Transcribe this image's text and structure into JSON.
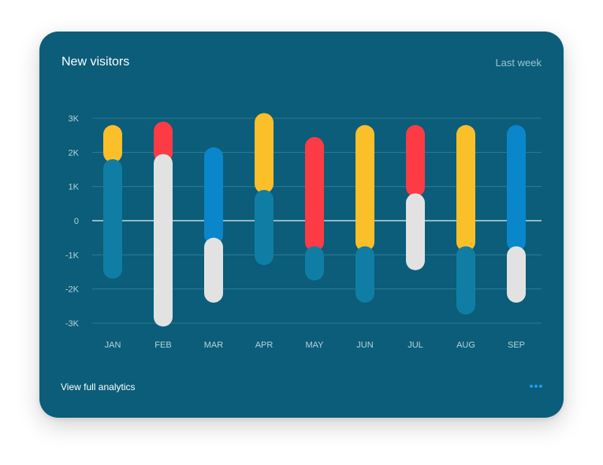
{
  "card": {
    "title": "New visitors",
    "range": "Last week",
    "footer_link": "View full analytics",
    "more_icon": "more-horizontal-icon"
  },
  "colors": {
    "background": "#0b5d79",
    "yellow": "#fbbf2a",
    "red": "#fc3b44",
    "blue": "#0a86cb",
    "teal": "#107ea4",
    "light": "#e2e2e2",
    "grid": "#4f8ea6",
    "zero_line": "#ffffff"
  },
  "chart_data": {
    "type": "bar",
    "categories": [
      "JAN",
      "FEB",
      "MAR",
      "APR",
      "MAY",
      "JUN",
      "JUL",
      "AUG",
      "SEP"
    ],
    "yticks": [
      3000,
      2000,
      1000,
      0,
      -1000,
      -2000,
      -3000
    ],
    "ytick_labels": [
      "3K",
      "2K",
      "1K",
      "0",
      "-1K",
      "-2K",
      "-3K"
    ],
    "ylim": [
      -3000,
      3000
    ],
    "grid": true,
    "bars": [
      {
        "top": {
          "color": "yellow",
          "range": [
            1700,
            2800
          ]
        },
        "bottom": {
          "color": "teal",
          "range": [
            -1700,
            1800
          ]
        }
      },
      {
        "top": {
          "color": "red",
          "range": [
            1700,
            2900
          ]
        },
        "bottom": {
          "color": "light",
          "range": [
            -3100,
            1950
          ]
        }
      },
      {
        "top": {
          "color": "blue",
          "range": [
            -700,
            2150
          ]
        },
        "bottom": {
          "color": "light",
          "range": [
            -2400,
            -500
          ]
        }
      },
      {
        "top": {
          "color": "yellow",
          "range": [
            800,
            3150
          ]
        },
        "bottom": {
          "color": "teal",
          "range": [
            -1300,
            900
          ]
        }
      },
      {
        "top": {
          "color": "red",
          "range": [
            -900,
            2450
          ]
        },
        "bottom": {
          "color": "teal",
          "range": [
            -1750,
            -750
          ]
        }
      },
      {
        "top": {
          "color": "yellow",
          "range": [
            -900,
            2800
          ]
        },
        "bottom": {
          "color": "teal",
          "range": [
            -2400,
            -750
          ]
        }
      },
      {
        "top": {
          "color": "red",
          "range": [
            700,
            2800
          ]
        },
        "bottom": {
          "color": "light",
          "range": [
            -1450,
            800
          ]
        }
      },
      {
        "top": {
          "color": "yellow",
          "range": [
            -900,
            2800
          ]
        },
        "bottom": {
          "color": "teal",
          "range": [
            -2750,
            -750
          ]
        }
      },
      {
        "top": {
          "color": "blue",
          "range": [
            -900,
            2800
          ]
        },
        "bottom": {
          "color": "light",
          "range": [
            -2400,
            -750
          ]
        }
      }
    ]
  }
}
